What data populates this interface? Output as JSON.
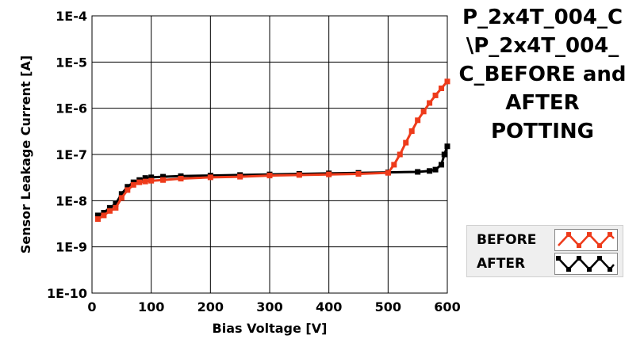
{
  "chart_data": {
    "type": "line",
    "title_lines": [
      "P_2x4T_004_C",
      "\\P_2x4T_004_",
      "C_BEFORE and",
      "AFTER",
      "POTTING"
    ],
    "xlabel": "Bias Voltage [V]",
    "ylabel": "Sensor Leakage Current [A]",
    "xlim": [
      0,
      600
    ],
    "ylim": [
      1e-10,
      0.0001
    ],
    "y_scale": "log",
    "grid": true,
    "legend_position": "right",
    "x_ticks": [
      0,
      100,
      200,
      300,
      400,
      500,
      600
    ],
    "x_tick_labels": [
      "0",
      "100",
      "200",
      "300",
      "400",
      "500",
      "600"
    ],
    "y_ticks": [
      0.0001,
      1e-05,
      1e-06,
      1e-07,
      1e-08,
      1e-09,
      1e-10
    ],
    "y_tick_labels": [
      "1E-4",
      "1E-5",
      "1E-6",
      "1E-7",
      "1E-8",
      "1E-9",
      "1E-10"
    ],
    "series": [
      {
        "name": "AFTER",
        "color": "#000000",
        "x": [
          10,
          20,
          30,
          40,
          50,
          60,
          70,
          80,
          90,
          100,
          120,
          150,
          200,
          250,
          300,
          350,
          400,
          450,
          500,
          550,
          570,
          580,
          590,
          595,
          600
        ],
        "y": [
          4.8e-09,
          5.5e-09,
          7e-09,
          8.5e-09,
          1.4e-08,
          2e-08,
          2.5e-08,
          2.8e-08,
          3.1e-08,
          3.2e-08,
          3.3e-08,
          3.4e-08,
          3.5e-08,
          3.6e-08,
          3.7e-08,
          3.8e-08,
          3.9e-08,
          4e-08,
          4.1e-08,
          4.2e-08,
          4.4e-08,
          4.7e-08,
          6e-08,
          1e-07,
          1.5e-07
        ]
      },
      {
        "name": "BEFORE",
        "color": "#ee3b1b",
        "x": [
          10,
          20,
          30,
          40,
          50,
          60,
          70,
          80,
          90,
          100,
          120,
          150,
          200,
          250,
          300,
          350,
          400,
          450,
          500,
          510,
          520,
          530,
          540,
          550,
          560,
          570,
          580,
          590,
          600
        ],
        "y": [
          4e-09,
          4.8e-09,
          6e-09,
          7e-09,
          1.15e-08,
          1.7e-08,
          2.2e-08,
          2.5e-08,
          2.6e-08,
          2.7e-08,
          2.8e-08,
          3e-08,
          3.2e-08,
          3.3e-08,
          3.5e-08,
          3.6e-08,
          3.7e-08,
          3.8e-08,
          4e-08,
          6e-08,
          1e-07,
          1.8e-07,
          3.2e-07,
          5.5e-07,
          8.5e-07,
          1.3e-06,
          1.9e-06,
          2.7e-06,
          3.8e-06
        ]
      }
    ]
  },
  "legend": {
    "items": [
      {
        "label": "BEFORE",
        "color": "#ee3b1b"
      },
      {
        "label": "AFTER",
        "color": "#000000"
      }
    ]
  }
}
